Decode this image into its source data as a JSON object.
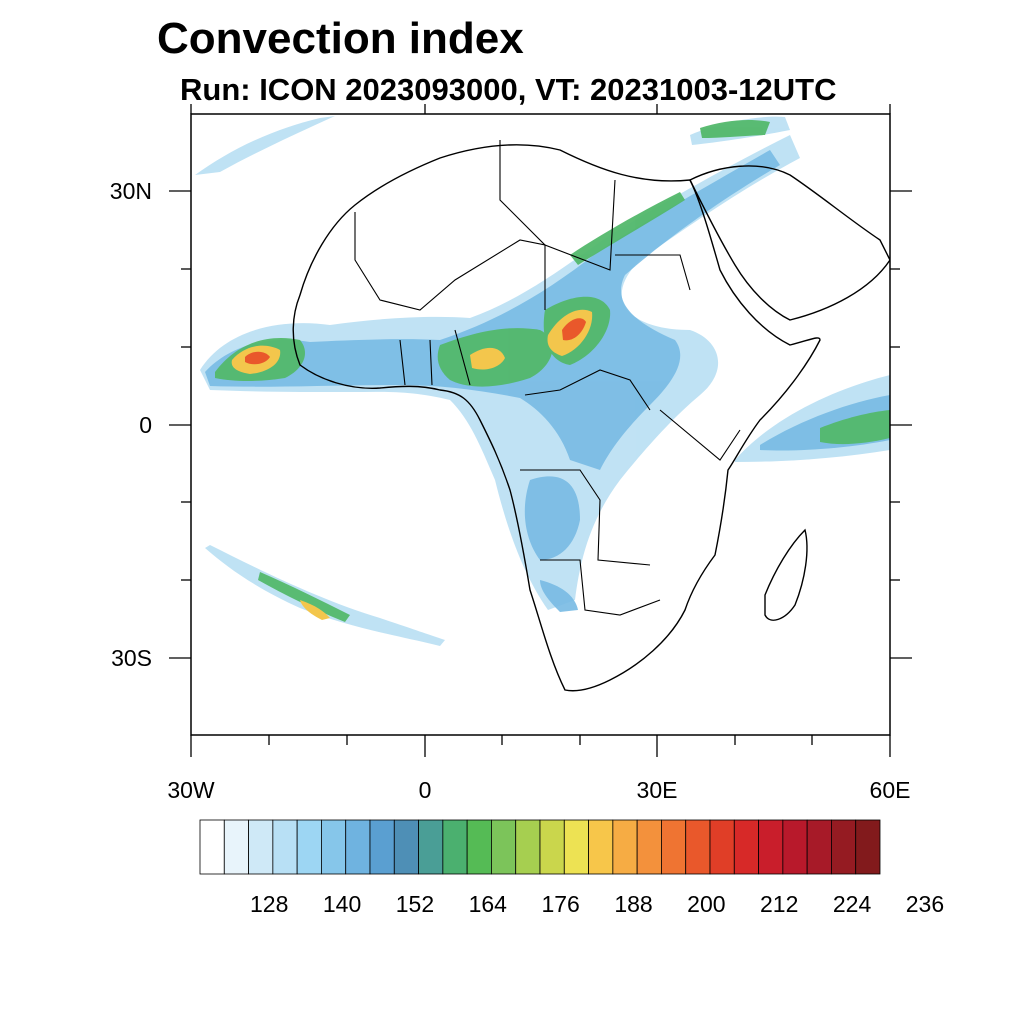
{
  "title": "Convection index",
  "subtitle": "Run: ICON 2023093000,  VT: 20231003-12UTC",
  "map": {
    "x_ticks": [
      "30W",
      "0",
      "30E",
      "60E"
    ],
    "y_ticks": [
      "30N",
      "0",
      "30S"
    ],
    "lon_range": [
      -30,
      60
    ],
    "lat_range": [
      -40,
      40
    ]
  },
  "colorbar": {
    "tick_labels": [
      "128",
      "140",
      "152",
      "164",
      "176",
      "188",
      "200",
      "212",
      "224",
      "236"
    ],
    "colors": [
      "#ffffff",
      "#e8f4fb",
      "#cfe9f7",
      "#b8e0f5",
      "#9dd6f3",
      "#86c6ea",
      "#6fb3e0",
      "#5a9fd1",
      "#4e8fb6",
      "#4a9e96",
      "#4bb06f",
      "#55bb55",
      "#7cc45a",
      "#a6cf50",
      "#cad64c",
      "#ede253",
      "#f7c64a",
      "#f6ac44",
      "#f3913c",
      "#ef7432",
      "#e9582b",
      "#e03e27",
      "#d72928",
      "#c91e2b",
      "#b8192b",
      "#a71a28",
      "#951b22",
      "#821a1c"
    ]
  }
}
